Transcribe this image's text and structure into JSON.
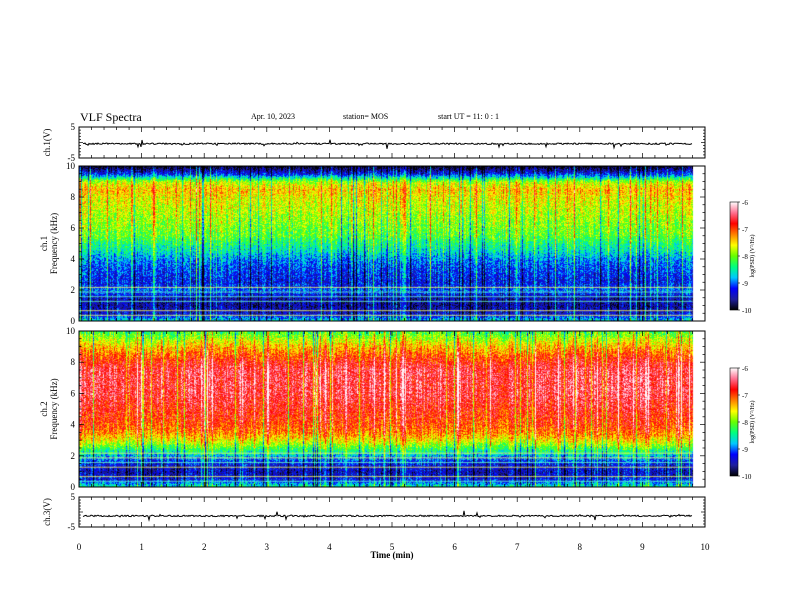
{
  "header": {
    "title": "VLF Spectra",
    "date": "Apr. 10, 2023",
    "station": "station= MOS",
    "start": "start UT =   11: 0  : 1"
  },
  "colorbar": {
    "label": "log(PSD) (V²/Hz)",
    "ticks": [
      "-6",
      "-7",
      "-8",
      "-9",
      "-10"
    ],
    "range": [
      -10,
      -6
    ],
    "colors": [
      "#000000",
      "#1e1e9e",
      "#0000ff",
      "#00c8ff",
      "#00ff80",
      "#66ff00",
      "#ffff00",
      "#ff8000",
      "#ff0000",
      "#ff7090",
      "#ffffff"
    ]
  },
  "chart_data": [
    {
      "type": "line",
      "panel": "ch1 waveform",
      "ylabel": "ch.1(V)",
      "ylim": [
        -5,
        5
      ],
      "yticklabels": [
        "5",
        "-5"
      ],
      "x_range": [
        0,
        9.8
      ],
      "y": -0.4
    },
    {
      "type": "heatmap",
      "panel": "ch1 spectrogram",
      "ylabel": "ch.1\nFrequency (kHz)",
      "ylim": [
        0,
        10
      ],
      "yticks": [
        0,
        2,
        4,
        6,
        8,
        10
      ],
      "yticklabels": [
        "0",
        "2",
        "4",
        "6",
        "8",
        "10"
      ],
      "x_range": [
        0,
        9.8
      ],
      "freq_kHz": [
        0,
        0.5,
        1,
        1.5,
        2,
        2.5,
        3,
        3.5,
        4,
        4.5,
        5,
        5.5,
        6,
        6.5,
        7,
        7.5,
        8,
        8.5,
        9,
        9.5,
        10
      ],
      "log_psd": [
        -8.6,
        -9.4,
        -9.6,
        -9.5,
        -9.0,
        -9.3,
        -9.2,
        -9.1,
        -8.9,
        -8.6,
        -8.4,
        -8.1,
        -8.0,
        -7.9,
        -7.8,
        -7.7,
        -7.6,
        -7.4,
        -7.8,
        -9.2,
        -10.0
      ]
    },
    {
      "type": "heatmap",
      "panel": "ch2 spectrogram",
      "ylabel": "ch.2\nFrequency (kHz)",
      "ylim": [
        0,
        10
      ],
      "yticks": [
        0,
        2,
        4,
        6,
        8,
        10
      ],
      "yticklabels": [
        "0",
        "2",
        "4",
        "6",
        "8",
        "10"
      ],
      "x_range": [
        0,
        9.8
      ],
      "freq_kHz": [
        0,
        0.5,
        1,
        1.5,
        2,
        2.5,
        3,
        3.5,
        4,
        4.5,
        5,
        5.5,
        6,
        6.5,
        7,
        7.5,
        8,
        8.5,
        9,
        9.5,
        10
      ],
      "log_psd": [
        -8.4,
        -9.3,
        -9.5,
        -9.3,
        -8.8,
        -8.2,
        -7.6,
        -7.2,
        -7.0,
        -6.9,
        -6.8,
        -6.7,
        -6.6,
        -6.6,
        -6.6,
        -6.6,
        -6.8,
        -7.1,
        -7.4,
        -7.8,
        -8.2
      ]
    },
    {
      "type": "line",
      "panel": "ch3 waveform",
      "ylabel": "ch.3(V)",
      "ylim": [
        -5,
        5
      ],
      "yticklabels": [
        "5",
        "-5"
      ],
      "x_range": [
        0,
        9.8
      ],
      "y": -1.3
    }
  ],
  "xaxis": {
    "label": "Time  (min)",
    "range": [
      0,
      10
    ],
    "ticks": [
      "0",
      "1",
      "2",
      "3",
      "4",
      "5",
      "6",
      "7",
      "8",
      "9",
      "10"
    ]
  }
}
